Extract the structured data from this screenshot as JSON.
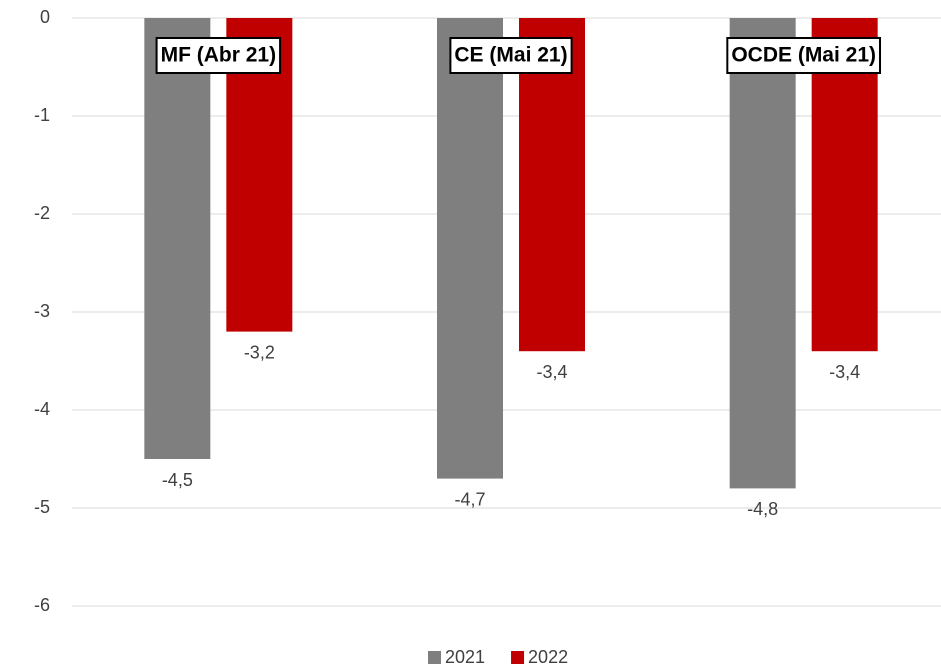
{
  "chart_data": {
    "type": "bar",
    "categories": [
      "MF (Abr 21)",
      "CE (Mai 21)",
      "OCDE (Mai 21)"
    ],
    "series": [
      {
        "name": "2021",
        "color": "#7f7f7f",
        "values": [
          -4.5,
          -4.7,
          -4.8
        ],
        "value_labels": [
          "-4,5",
          "-4,7",
          "-4,8"
        ]
      },
      {
        "name": "2022",
        "color": "#c00000",
        "values": [
          -3.2,
          -3.4,
          -3.4
        ],
        "value_labels": [
          "-3,2",
          "-3,4",
          "-3,4"
        ]
      }
    ],
    "ylim": [
      -6,
      0
    ],
    "yticks": [
      0,
      -1,
      -2,
      -3,
      -4,
      -5,
      -6
    ],
    "grid": true,
    "legend": "bottom"
  }
}
